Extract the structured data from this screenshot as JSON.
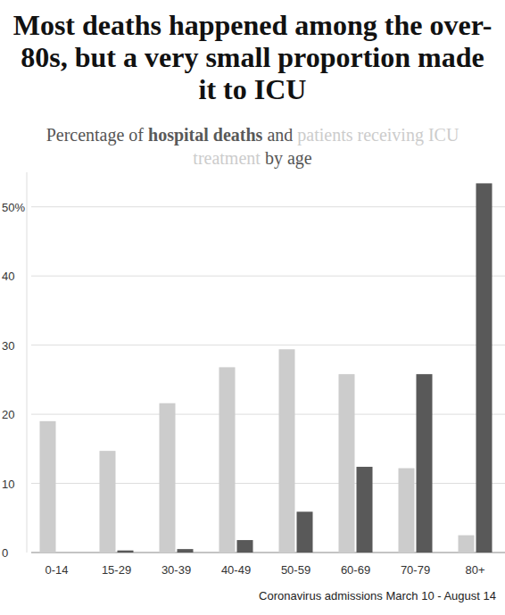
{
  "chart_data": {
    "type": "bar",
    "title": "Most deaths happened among the over-80s, but a very small proportion made it to ICU",
    "subtitle": "Percentage of hospital deaths and patients receiving ICU treatment by age",
    "source": "Coronavirus admissions March 10 - August 14",
    "categories": [
      "0-14",
      "15-29",
      "30-39",
      "40-49",
      "50-59",
      "60-69",
      "70-79",
      "80+"
    ],
    "series": [
      {
        "name": "patients receiving ICU treatment",
        "color": "#cccccc",
        "values": [
          19,
          14.7,
          21.6,
          26.8,
          29.4,
          25.8,
          12.2,
          2.5
        ]
      },
      {
        "name": "hospital deaths",
        "color": "#595959",
        "values": [
          0,
          0.3,
          0.5,
          1.8,
          5.9,
          12.4,
          25.8,
          53.4
        ]
      }
    ],
    "ylim": [
      0,
      55
    ],
    "yticks": [
      0,
      10,
      20,
      30,
      40,
      {
        "value": 50,
        "label": "50%"
      }
    ],
    "grid": true
  }
}
